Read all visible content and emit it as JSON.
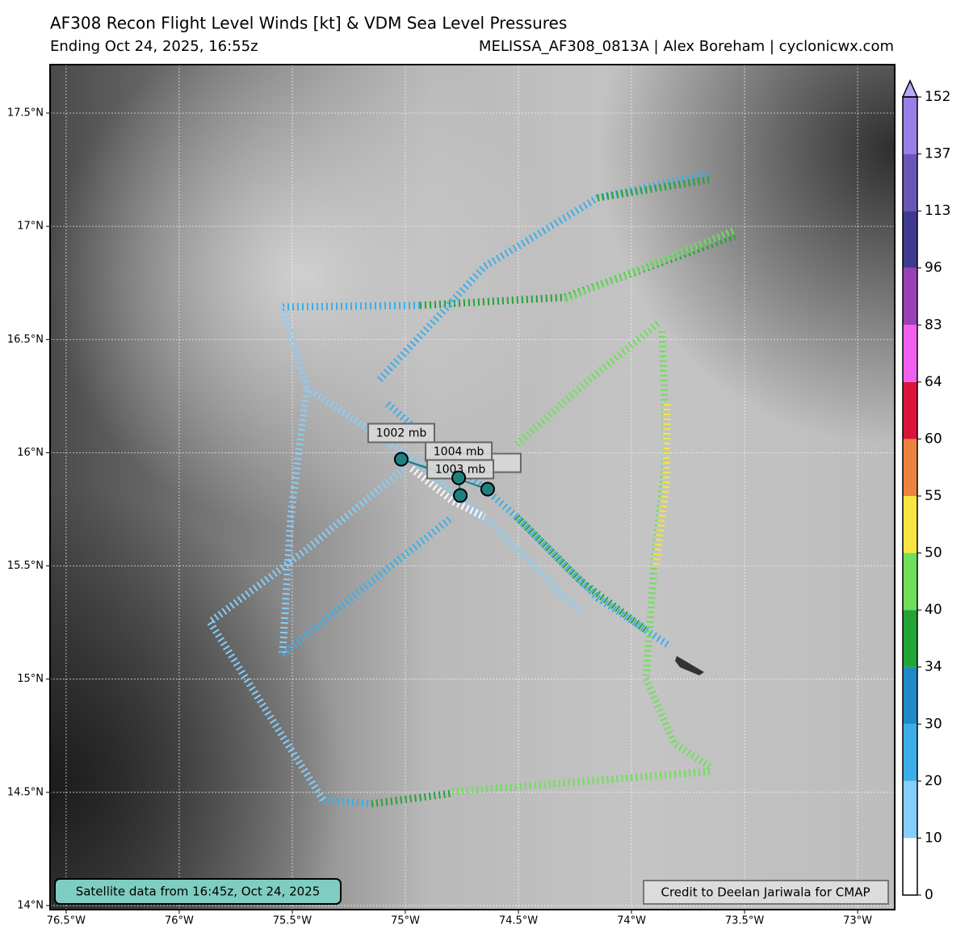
{
  "chart_data": {
    "type": "map",
    "title": "AF308 Recon Flight Level Winds [kt] & VDM Sea Level Pressures",
    "subtitle": "Ending Oct 24, 2025, 16:55z",
    "source": "MELISSA_AF308_0813A | Alex Boreham | cyclonicwx.com",
    "xlim": [
      -76.571,
      -72.836
    ],
    "ylim": [
      13.982,
      17.714
    ],
    "xticks": [
      {
        "value": -76.5,
        "label": "76.5°W"
      },
      {
        "value": -76,
        "label": "76°W"
      },
      {
        "value": -75.5,
        "label": "75.5°W"
      },
      {
        "value": -75,
        "label": "75°W"
      },
      {
        "value": -74.5,
        "label": "74.5°W"
      },
      {
        "value": -74,
        "label": "74°W"
      },
      {
        "value": -73.5,
        "label": "73.5°W"
      },
      {
        "value": -73,
        "label": "73°W"
      }
    ],
    "yticks": [
      {
        "value": 14,
        "label": "14°N"
      },
      {
        "value": 14.5,
        "label": "14.5°N"
      },
      {
        "value": 15,
        "label": "15°N"
      },
      {
        "value": 15.5,
        "label": "15.5°N"
      },
      {
        "value": 16,
        "label": "16°N"
      },
      {
        "value": 16.5,
        "label": "16.5°N"
      },
      {
        "value": 17,
        "label": "17°N"
      },
      {
        "value": 17.5,
        "label": "17.5°N"
      }
    ],
    "grid": true,
    "points": [
      {
        "label": null,
        "lon": -74.636,
        "lat": 15.839
      },
      {
        "label": "1002 mb",
        "lon": -75.018,
        "lat": 15.971
      },
      {
        "label": "1004 mb",
        "lon": -74.764,
        "lat": 15.889
      },
      {
        "label": "1003 mb",
        "lon": -74.757,
        "lat": 15.811
      }
    ],
    "point_color": "#1f8080",
    "colorbar": {
      "levels": [
        0,
        10,
        20,
        30,
        34,
        40,
        50,
        55,
        60,
        64,
        83,
        96,
        113,
        137,
        152
      ],
      "colors": [
        "#ffffff",
        "#87cefa",
        "#3daee9",
        "#1e8bc8",
        "#24a336",
        "#6ee05a",
        "#f7e541",
        "#ec8240",
        "#dc143c",
        "#f060f0",
        "#9b3fb5",
        "#3f3a8f",
        "#6a56b8",
        "#9a7fe8"
      ],
      "extend_color": "#b9a8f5"
    },
    "satellite_note": "Satellite data from 16:45z, Oct 24, 2025",
    "credit": "Credit to Deelan Jariwala for CMAP"
  }
}
